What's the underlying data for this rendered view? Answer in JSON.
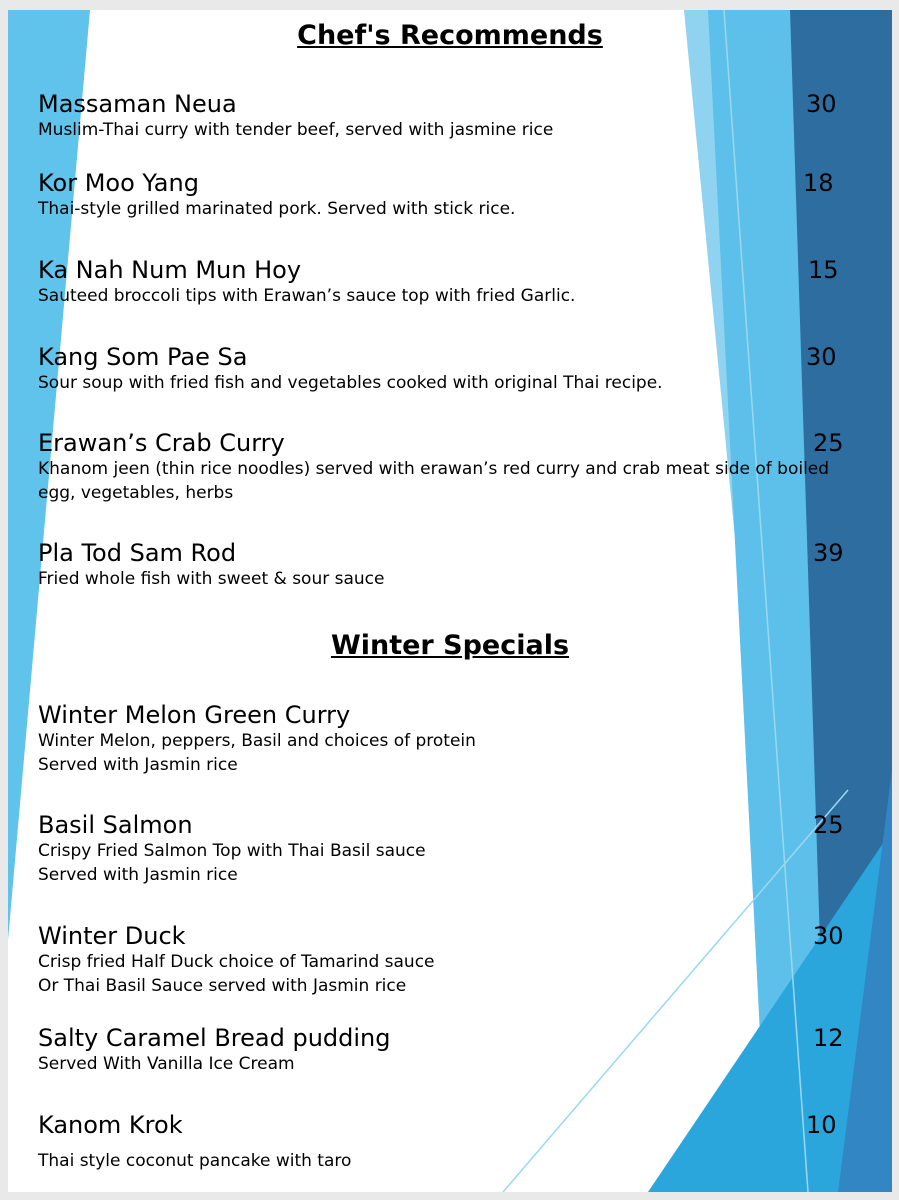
{
  "sections": [
    {
      "title": "Chef's Recommends",
      "items": [
        {
          "name": "Massaman Neua",
          "description": [
            "Muslim-Thai curry with tender beef, served with jasmine rice"
          ],
          "price": "30"
        },
        {
          "name": "Kor Moo Yang",
          "description": [
            "Thai-style grilled marinated pork. Served with stick rice."
          ],
          "price": "18"
        },
        {
          "name": "Ka Nah Num Mun Hoy",
          "description": [
            "Sauteed broccoli tips with Erawan’s sauce top with fried Garlic."
          ],
          "price": "15"
        },
        {
          "name": "Kang Som Pae Sa",
          "description": [
            "Sour soup with fried fish and vegetables cooked with original Thai recipe."
          ],
          "price": "30"
        },
        {
          "name": "Erawan’s Crab Curry",
          "description": [
            "Khanom jeen (thin rice noodles) served with erawan’s red curry and crab meat side of boiled",
            "egg, vegetables, herbs"
          ],
          "price": "25"
        },
        {
          "name": "Pla Tod Sam Rod",
          "description": [
            "Fried whole fish with sweet & sour sauce"
          ],
          "price": "39"
        }
      ]
    },
    {
      "title": "Winter Specials",
      "items": [
        {
          "name": "Winter Melon Green Curry",
          "description": [
            "Winter Melon, peppers, Basil and choices of protein",
            "Served with Jasmin rice"
          ]
        },
        {
          "name": "Basil Salmon",
          "description": [
            "Crispy Fried Salmon Top with Thai Basil sauce",
            "Served with Jasmin rice"
          ],
          "price": "25"
        },
        {
          "name": "Winter Duck",
          "description": [
            "Crisp fried Half Duck choice of Tamarind sauce",
            "Or Thai Basil Sauce served with Jasmin rice"
          ],
          "price": "30"
        },
        {
          "name": "Salty Caramel Bread pudding",
          "description": [
            "Served With Vanilla Ice Cream"
          ],
          "price": "12"
        },
        {
          "name": "Kanom Krok",
          "description": [
            "Thai style coconut pancake with taro"
          ],
          "price": "10"
        }
      ]
    }
  ]
}
